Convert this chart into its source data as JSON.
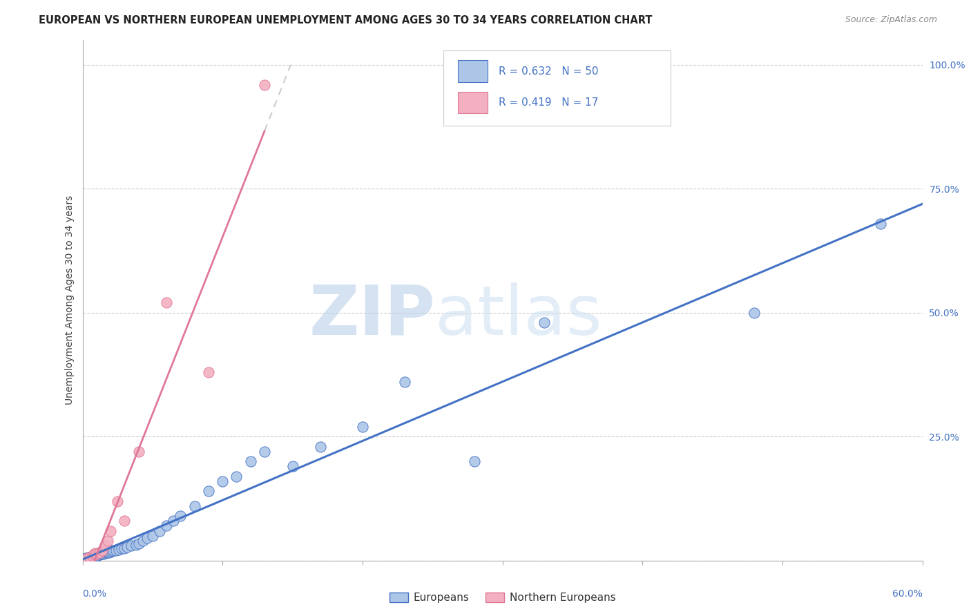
{
  "title": "EUROPEAN VS NORTHERN EUROPEAN UNEMPLOYMENT AMONG AGES 30 TO 34 YEARS CORRELATION CHART",
  "source": "Source: ZipAtlas.com",
  "ylabel": "Unemployment Among Ages 30 to 34 years",
  "y_ticks": [
    0.0,
    0.25,
    0.5,
    0.75,
    1.0
  ],
  "y_tick_labels": [
    "",
    "25.0%",
    "50.0%",
    "75.0%",
    "100.0%"
  ],
  "x_range": [
    0.0,
    0.6
  ],
  "y_range": [
    0.0,
    1.05
  ],
  "color_european": "#adc6e8",
  "color_northern": "#f2b0c0",
  "color_european_line": "#4472c4",
  "color_northern_line": "#e07898",
  "color_legend_text": "#4472c4",
  "watermark_color": "#ccdaea",
  "european_x": [
    0.002,
    0.003,
    0.004,
    0.005,
    0.006,
    0.007,
    0.008,
    0.009,
    0.01,
    0.011,
    0.012,
    0.013,
    0.014,
    0.015,
    0.016,
    0.017,
    0.018,
    0.019,
    0.02,
    0.021,
    0.022,
    0.024,
    0.026,
    0.028,
    0.03,
    0.032,
    0.035,
    0.038,
    0.04,
    0.043,
    0.046,
    0.05,
    0.055,
    0.06,
    0.065,
    0.07,
    0.08,
    0.09,
    0.1,
    0.11,
    0.12,
    0.13,
    0.15,
    0.17,
    0.2,
    0.23,
    0.28,
    0.33,
    0.48,
    0.57
  ],
  "european_y": [
    0.005,
    0.005,
    0.006,
    0.007,
    0.008,
    0.008,
    0.009,
    0.01,
    0.01,
    0.011,
    0.012,
    0.013,
    0.013,
    0.014,
    0.015,
    0.016,
    0.017,
    0.017,
    0.018,
    0.019,
    0.02,
    0.021,
    0.022,
    0.024,
    0.025,
    0.027,
    0.03,
    0.032,
    0.035,
    0.04,
    0.045,
    0.05,
    0.06,
    0.07,
    0.08,
    0.09,
    0.11,
    0.14,
    0.16,
    0.17,
    0.2,
    0.22,
    0.19,
    0.23,
    0.27,
    0.36,
    0.2,
    0.48,
    0.5,
    0.68
  ],
  "northern_x": [
    0.003,
    0.005,
    0.007,
    0.008,
    0.009,
    0.01,
    0.012,
    0.014,
    0.016,
    0.018,
    0.02,
    0.025,
    0.03,
    0.04,
    0.06,
    0.09,
    0.13
  ],
  "northern_y": [
    0.005,
    0.006,
    0.01,
    0.013,
    0.015,
    0.013,
    0.017,
    0.02,
    0.03,
    0.04,
    0.06,
    0.12,
    0.08,
    0.22,
    0.52,
    0.38,
    0.96
  ]
}
